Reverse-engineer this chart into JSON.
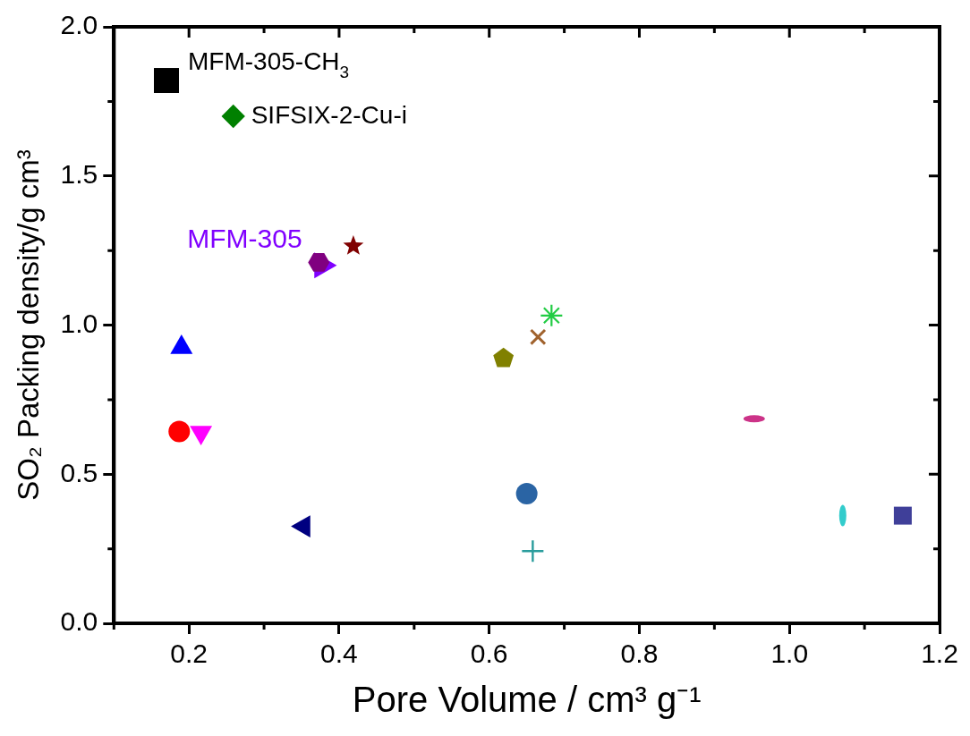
{
  "chart_data": {
    "type": "scatter",
    "xlabel": "Pore Volume / cm³ g⁻¹",
    "ylabel": "SO₂ Packing density/g cm³",
    "xlim": [
      0.1,
      1.2
    ],
    "ylim": [
      0,
      2
    ],
    "xticks": [
      {
        "value": 0.2,
        "label": "0.2"
      },
      {
        "value": 0.4,
        "label": "0.4"
      },
      {
        "value": 0.6,
        "label": "0.6"
      },
      {
        "value": 0.8,
        "label": "0.8"
      },
      {
        "value": 1.0,
        "label": "1.0"
      },
      {
        "value": 1.2,
        "label": "1.2"
      }
    ],
    "yticks": [
      {
        "value": 0,
        "label": "0.0"
      },
      {
        "value": 0.5,
        "label": "0.5"
      },
      {
        "value": 1.0,
        "label": "1.0"
      },
      {
        "value": 1.5,
        "label": "1.5"
      },
      {
        "value": 2.0,
        "label": "2.0"
      }
    ],
    "grid": false,
    "legend": false,
    "annotations": [
      {
        "text": "MFM-305-CH$_{3}$",
        "x": 0.17,
        "y": 1.82
      },
      {
        "text": "SIFSIX-2-Cu-i",
        "x": 0.259,
        "y": 1.7
      }
    ],
    "series": [
      {
        "color": "#000000",
        "x": [
          0.17
        ],
        "values": [
          1.82
        ]
      },
      {
        "color": "#008000",
        "x": [
          0.259
        ],
        "values": [
          1.7
        ]
      },
      {
        "name": "MFM-305",
        "color": "#8000ff",
        "x": [
          0.377
        ],
        "values": [
          1.2
        ]
      },
      {
        "color": "#800080",
        "x": [
          0.373
        ],
        "values": [
          1.21
        ]
      },
      {
        "color": "#800000",
        "x": [
          0.419
        ],
        "values": [
          1.265
        ]
      },
      {
        "color": "#0000ff",
        "x": [
          0.19
        ],
        "values": [
          0.925
        ]
      },
      {
        "color": "#ff0000",
        "x": [
          0.187
        ],
        "values": [
          0.643
        ]
      },
      {
        "color": "#ff00ff",
        "x": [
          0.216
        ],
        "values": [
          0.64
        ]
      },
      {
        "color": "#000080",
        "x": [
          0.353
        ],
        "values": [
          0.325
        ]
      },
      {
        "color": "#808000",
        "x": [
          0.619
        ],
        "values": [
          0.888
        ]
      },
      {
        "color": "#2a64a4",
        "x": [
          0.65
        ],
        "values": [
          0.435
        ]
      },
      {
        "color": "#2a9d9d",
        "x": [
          0.658
        ],
        "values": [
          0.242
        ]
      },
      {
        "color": "#a0622d",
        "x": [
          0.665
        ],
        "values": [
          0.96
        ]
      },
      {
        "color": "#22cc44",
        "x": [
          0.683
        ],
        "values": [
          1.032
        ]
      },
      {
        "color": "#cc3388",
        "x": [
          0.953
        ],
        "values": [
          0.686
        ]
      },
      {
        "color": "#33cccc",
        "x": [
          1.071
        ],
        "values": [
          0.361
        ]
      },
      {
        "color": "#3f3f99",
        "x": [
          1.151
        ],
        "values": [
          0.361
        ]
      }
    ]
  }
}
